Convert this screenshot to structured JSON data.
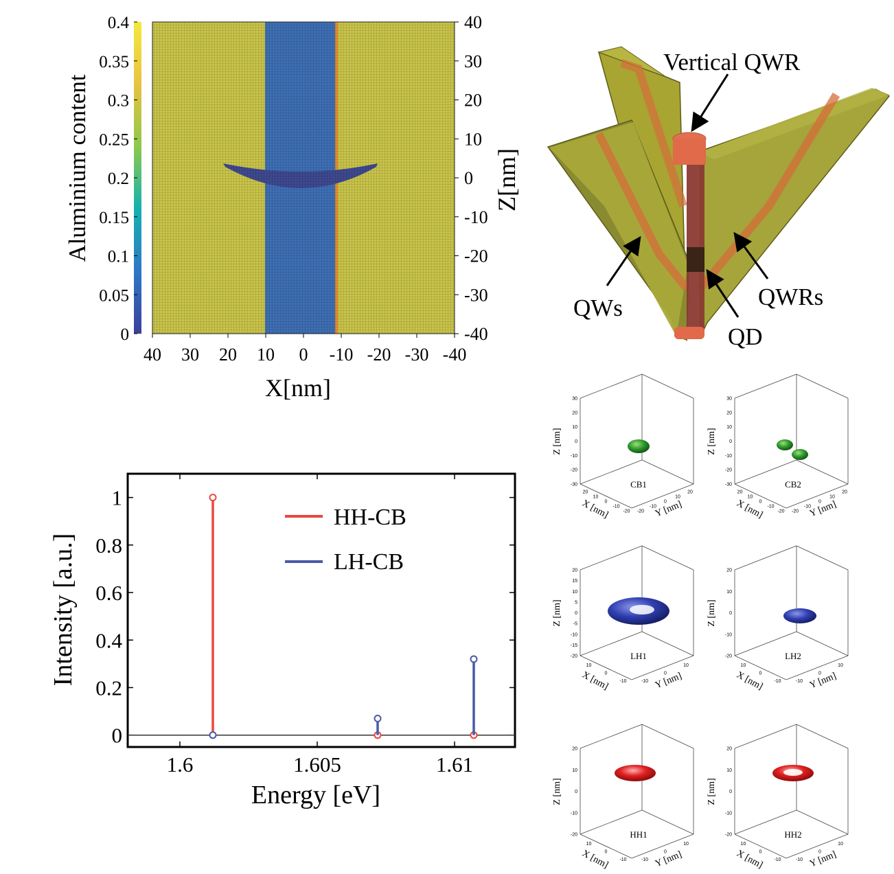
{
  "chart_data": [
    {
      "type": "heatmap",
      "name": "aluminium-map",
      "colorbar": {
        "label": "Aluminium content",
        "range": [
          0,
          0.4
        ],
        "ticks": [
          "0",
          "0.05",
          "0.1",
          "0.15",
          "0.2",
          "0.25",
          "0.3",
          "0.35",
          "0.4"
        ],
        "colors": [
          "#3b3f9a",
          "#2f77c6",
          "#12b2b0",
          "#8cc94a",
          "#e9c240",
          "#f3e93a"
        ]
      },
      "xlabel": "X[nm]",
      "xlim": [
        40,
        -40
      ],
      "xticks": [
        "40",
        "30",
        "20",
        "10",
        "0",
        "-10",
        "-20",
        "-30",
        "-40"
      ],
      "ylabel": "Z[nm]",
      "ylim": [
        -40,
        40
      ],
      "yticks": [
        "40",
        "30",
        "20",
        "10",
        "0",
        "-10",
        "-20",
        "-30",
        "-40"
      ],
      "regions": [
        {
          "name": "barrier",
          "x_range": [
            40,
            -40
          ],
          "value": 0.33,
          "color": "#c9c44a"
        },
        {
          "name": "vertical-qwr",
          "x_range": [
            10,
            -9
          ],
          "value": 0.05,
          "color": "#3e6fb4"
        },
        {
          "name": "qd",
          "x_range": [
            20,
            -20
          ],
          "z_range": [
            -5,
            4
          ],
          "value": 0.0,
          "color": "#3e4990"
        }
      ]
    },
    {
      "type": "stem",
      "name": "emission-spectrum",
      "xlabel": "Energy [eV]",
      "ylabel": "Intensity [a.u.]",
      "xlim": [
        1.5981,
        1.6122
      ],
      "ylim": [
        -0.05,
        1.1
      ],
      "xticks": [
        "1.6",
        "1.605",
        "1.61"
      ],
      "yticks": [
        "0",
        "0.2",
        "0.4",
        "0.6",
        "0.8",
        "1"
      ],
      "series": [
        {
          "name": "HH-CB",
          "color": "#e8493e",
          "points": [
            {
              "x": 1.6012,
              "y": 1.0
            },
            {
              "x": 1.6072,
              "y": 0.0
            },
            {
              "x": 1.6107,
              "y": 0.0
            }
          ]
        },
        {
          "name": "LH-CB",
          "color": "#4a5aa8",
          "points": [
            {
              "x": 1.6012,
              "y": 0.0
            },
            {
              "x": 1.6072,
              "y": 0.07
            },
            {
              "x": 1.6107,
              "y": 0.32
            }
          ]
        }
      ],
      "legend": "top-right"
    }
  ],
  "schematic": {
    "labels": {
      "vertical_qwr": "Vertical QWR",
      "qws": "QWs",
      "qwrs": "QWRs",
      "qd": "QD"
    }
  },
  "isosurfaces": [
    {
      "label": "CB1",
      "color": "#2f8f2a",
      "zticks": [
        "30",
        "20",
        "10",
        "0",
        "-10",
        "-20",
        "-30"
      ],
      "xticks": [
        "20",
        "10",
        "0",
        "-10",
        "-20"
      ],
      "yticks": [
        "-20",
        "-10",
        "0",
        "10",
        "20"
      ]
    },
    {
      "label": "CB2",
      "color": "#2f8f2a",
      "zticks": [
        "30",
        "20",
        "10",
        "0",
        "-10",
        "-20",
        "-30"
      ],
      "xticks": [
        "20",
        "10",
        "0",
        "-10",
        "-20"
      ],
      "yticks": [
        "-20",
        "-10",
        "0",
        "10",
        "20"
      ]
    },
    {
      "label": "LH1",
      "color": "#2e3fa5",
      "zticks": [
        "20",
        "15",
        "10",
        "5",
        "0",
        "-5",
        "-10",
        "-15",
        "-20"
      ],
      "xticks": [
        "10",
        "0",
        "-10"
      ],
      "yticks": [
        "-10",
        "0",
        "10"
      ]
    },
    {
      "label": "LH2",
      "color": "#2e3fa5",
      "zticks": [
        "20",
        "10",
        "0",
        "-10",
        "-20"
      ],
      "xticks": [
        "10",
        "0",
        "-10"
      ],
      "yticks": [
        "-10",
        "0",
        "10"
      ]
    },
    {
      "label": "HH1",
      "color": "#d81e1e",
      "zticks": [
        "20",
        "10",
        "0",
        "-10",
        "-20"
      ],
      "xticks": [
        "10",
        "0",
        "-10"
      ],
      "yticks": [
        "-10",
        "0",
        "10"
      ]
    },
    {
      "label": "HH2",
      "color": "#d81e1e",
      "zticks": [
        "20",
        "10",
        "0",
        "-10",
        "-20"
      ],
      "xticks": [
        "10",
        "0",
        "-10"
      ],
      "yticks": [
        "-10",
        "0",
        "10"
      ]
    }
  ],
  "axis_labels": {
    "x": "X [nm]",
    "y": "Y [nm]",
    "z": "Z [nm]"
  }
}
